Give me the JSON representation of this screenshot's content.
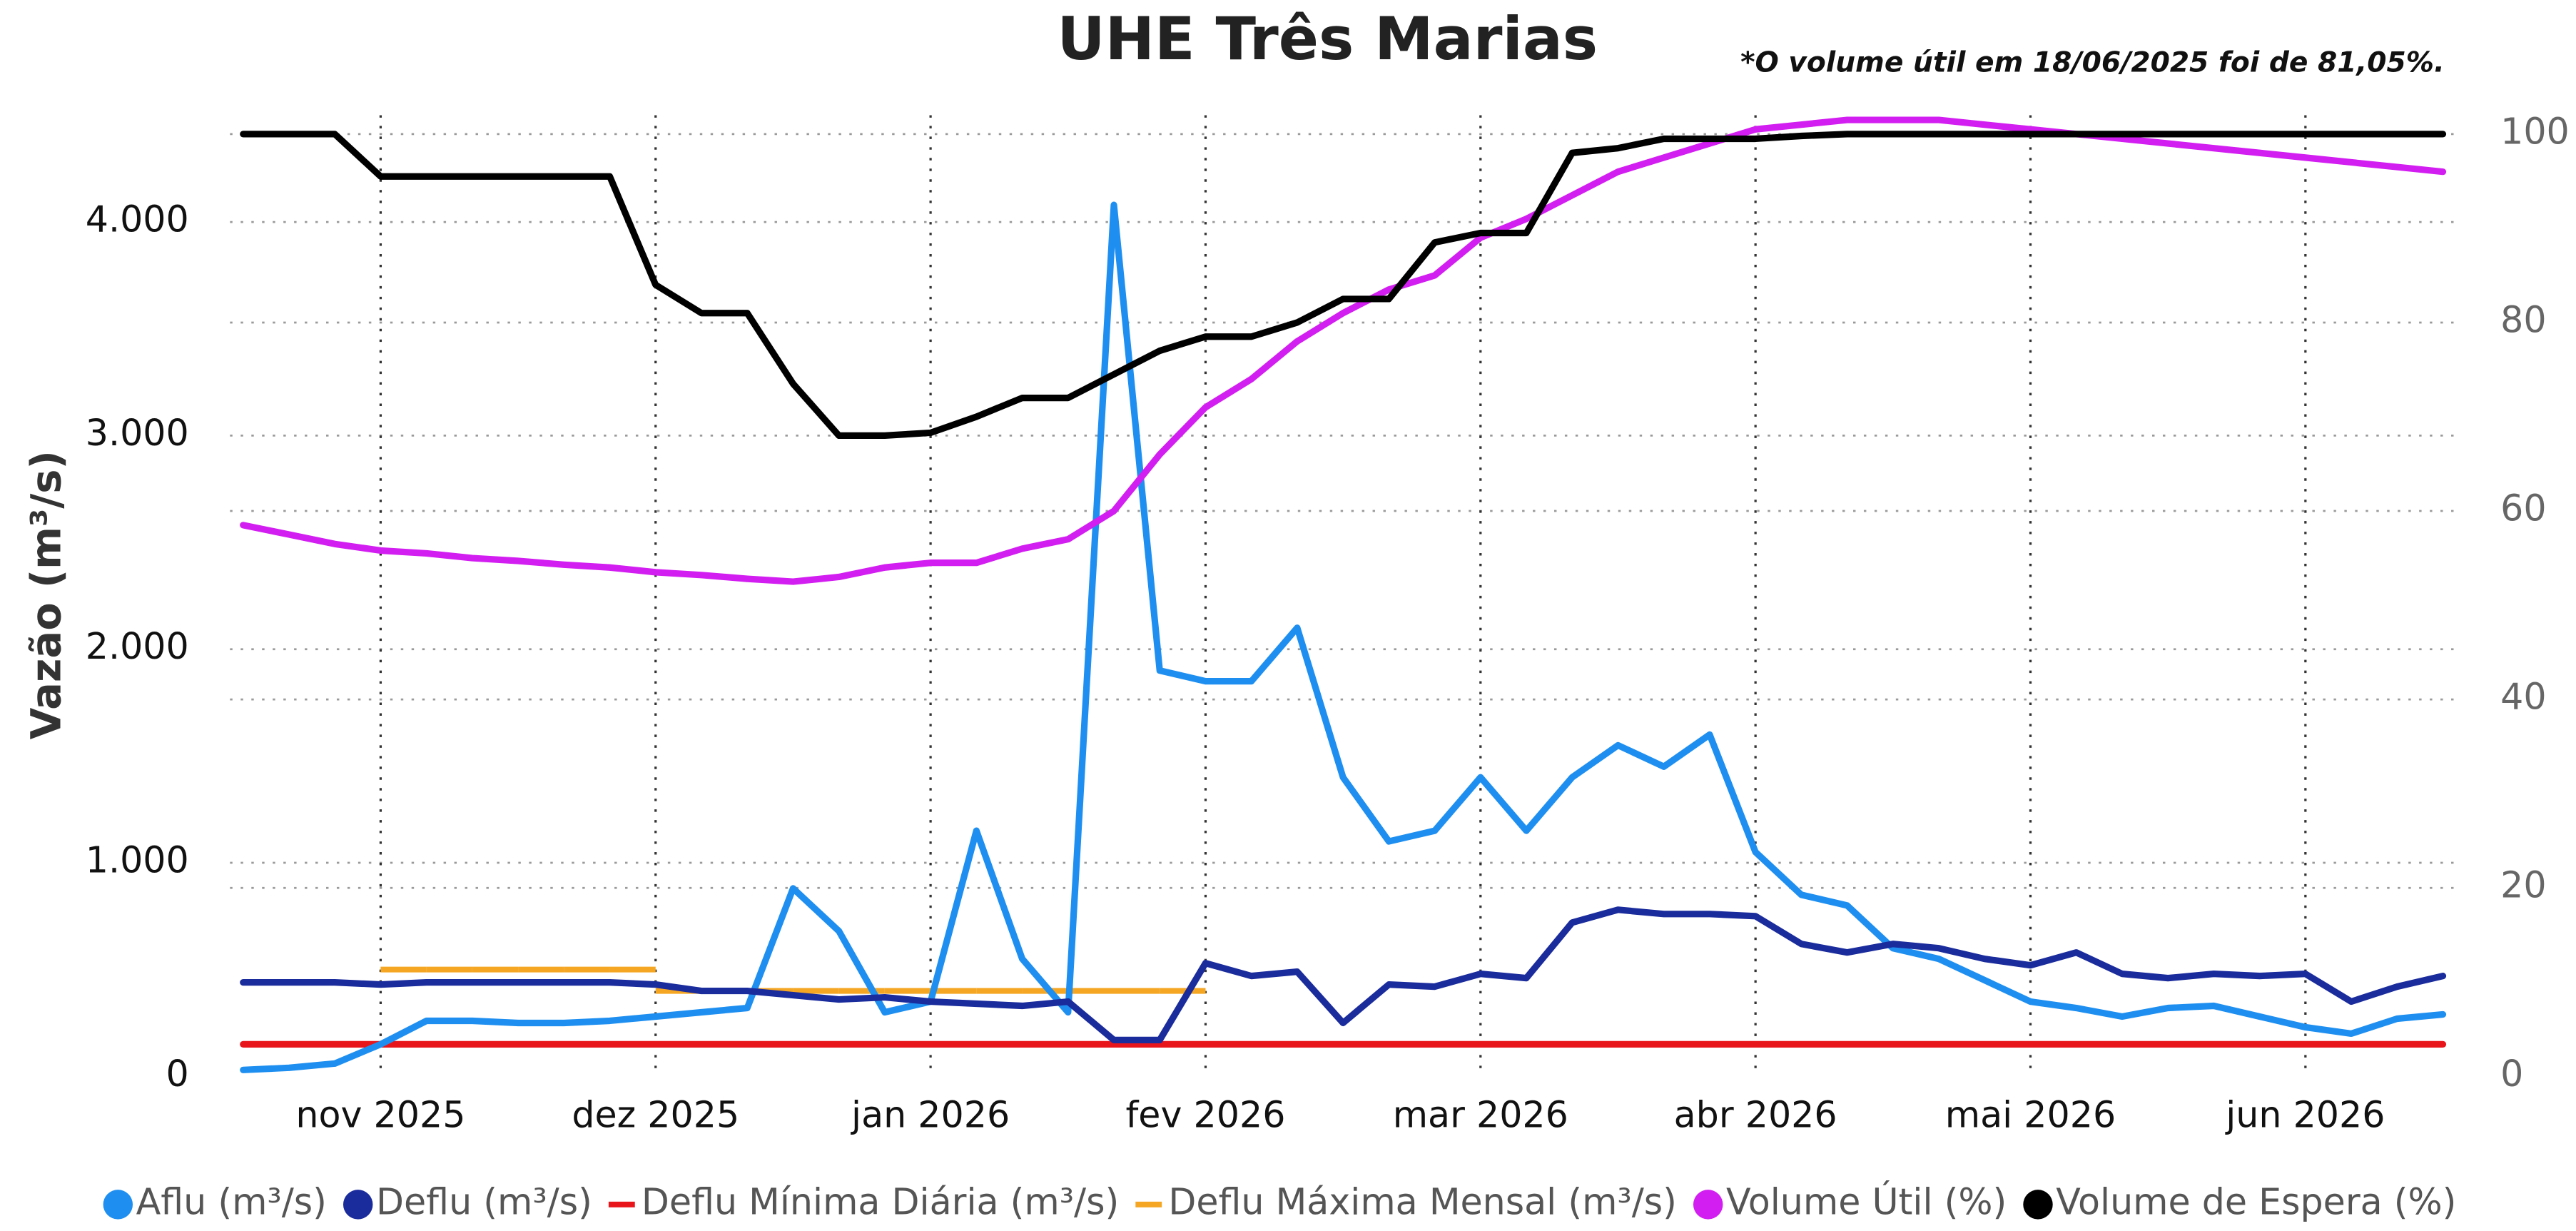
{
  "chart_data": {
    "type": "line",
    "title": "UHE Três Marias",
    "annotation": "*O volume útil em 18/06/2025 foi de 81,05%.",
    "ylabel": "Vazão (m³/s)",
    "categories": [
      null,
      null,
      null,
      "nov 2025",
      null,
      null,
      null,
      null,
      null,
      "dez 2025",
      null,
      null,
      null,
      null,
      null,
      "jan 2026",
      null,
      null,
      null,
      null,
      null,
      "fev 2026",
      null,
      null,
      null,
      null,
      null,
      "mar 2026",
      null,
      null,
      null,
      null,
      null,
      "abr 2026",
      null,
      null,
      null,
      null,
      null,
      "mai 2026",
      null,
      null,
      null,
      null,
      null,
      "jun 2026",
      null,
      null,
      null
    ],
    "ylim": [
      0,
      4500
    ],
    "yticks": [
      0,
      {
        "value": 1000,
        "label": "1.000"
      },
      {
        "value": 2000,
        "label": "2.000"
      },
      {
        "value": 3000,
        "label": "3.000"
      },
      {
        "value": 4000,
        "label": "4.000"
      }
    ],
    "y2lim": [
      0,
      102
    ],
    "y2ticks": [
      0,
      20,
      40,
      60,
      80,
      100
    ],
    "grid": true,
    "legend": "bottom",
    "series": [
      {
        "name": "Deflu Mínima Diária (m³/s)",
        "color": "#e8161b",
        "legend_marker": "line",
        "values": [
          150,
          150,
          150,
          150,
          150,
          150,
          150,
          150,
          150,
          150,
          150,
          150,
          150,
          150,
          150,
          150,
          150,
          150,
          150,
          150,
          150,
          150,
          150,
          150,
          150,
          150,
          150,
          150,
          150,
          150,
          150,
          150,
          150,
          150,
          150,
          150,
          150,
          150,
          150,
          150,
          150,
          150,
          150,
          150,
          150,
          150,
          150,
          150,
          150
        ]
      },
      {
        "name": "Deflu Máxima Mensal (m³/s)",
        "color": "#f5a623",
        "legend_marker": "line",
        "segments": true,
        "values": [
          null,
          null,
          null,
          500,
          500,
          500,
          500,
          500,
          500,
          400,
          400,
          400,
          400,
          400,
          400,
          400,
          400,
          400,
          400,
          400,
          400,
          null,
          null,
          null,
          null,
          null,
          null,
          null,
          null,
          null,
          null,
          null,
          null,
          null,
          null,
          null,
          null,
          null,
          null,
          null,
          null,
          null,
          null,
          null,
          null,
          null,
          null,
          null,
          null
        ]
      },
      {
        "name": "Aflu (m³/s)",
        "color": "#1e8ff0",
        "legend_marker": "circle",
        "values": [
          30,
          40,
          60,
          150,
          260,
          260,
          250,
          250,
          260,
          280,
          300,
          320,
          880,
          680,
          300,
          350,
          1150,
          550,
          300,
          4080,
          1900,
          1850,
          1850,
          2100,
          1400,
          1100,
          1150,
          1400,
          1150,
          1400,
          1550,
          1450,
          1600,
          1050,
          850,
          800,
          600,
          550,
          450,
          350,
          320,
          280,
          320,
          330,
          280,
          230,
          200,
          270,
          290
        ]
      },
      {
        "name": "Deflu (m³/s)",
        "color": "#1a2b9c",
        "legend_marker": "circle",
        "values": [
          440,
          440,
          440,
          430,
          440,
          440,
          440,
          440,
          440,
          430,
          400,
          400,
          380,
          360,
          370,
          350,
          340,
          330,
          350,
          170,
          170,
          530,
          470,
          490,
          250,
          430,
          420,
          480,
          460,
          720,
          780,
          760,
          760,
          750,
          620,
          580,
          620,
          600,
          550,
          520,
          580,
          480,
          460,
          480,
          470,
          480,
          350,
          420,
          470
        ]
      },
      {
        "name": "Volume Útil (%)",
        "color": "#d21ef0",
        "legend_marker": "circle",
        "axis": "y2",
        "values": [
          58.5,
          57.5,
          56.5,
          55.8,
          55.5,
          55,
          54.7,
          54.3,
          54,
          53.5,
          53.2,
          52.8,
          52.5,
          53,
          54,
          54.5,
          54.5,
          56,
          57,
          60,
          66,
          71,
          74,
          78,
          81,
          83.5,
          85,
          89,
          91,
          93.5,
          96,
          97.5,
          99,
          100.5,
          101,
          101.5,
          101.5,
          101.5,
          101,
          100.5,
          100,
          99.5,
          99,
          98.5,
          98,
          97.5,
          97,
          96.5,
          96
        ]
      },
      {
        "name": "Volume de Espera (%)",
        "color": "#000000",
        "legend_marker": "circle",
        "axis": "y2",
        "values": [
          100,
          100,
          100,
          95.5,
          95.5,
          95.5,
          95.5,
          95.5,
          95.5,
          84,
          81,
          81,
          73.5,
          68,
          68,
          68.3,
          70,
          72,
          72,
          74.5,
          77,
          78.5,
          78.5,
          80,
          82.5,
          82.5,
          88.5,
          89.5,
          89.5,
          98,
          98.5,
          99.5,
          99.5,
          99.5,
          99.8,
          100,
          100,
          100,
          100,
          100,
          100,
          100,
          100,
          100,
          100,
          100,
          100,
          100,
          100
        ]
      }
    ]
  }
}
